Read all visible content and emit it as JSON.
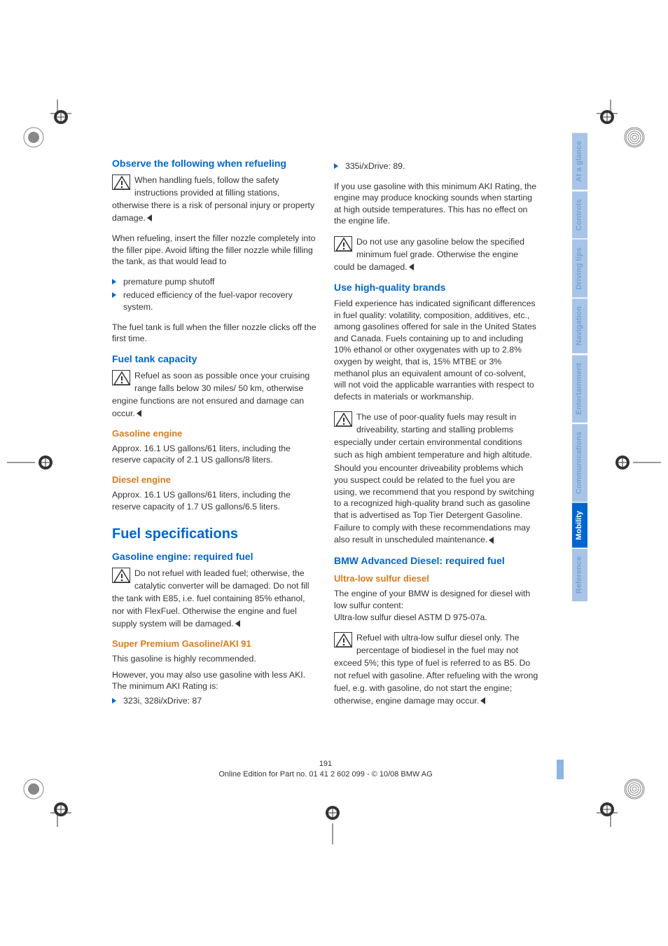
{
  "colors": {
    "heading_blue": "#0066cc",
    "heading_orange": "#d97b1e",
    "body_text": "#333333",
    "tab_inactive_bg": "#a8c5e8",
    "tab_inactive_text": "#7aa3d4",
    "tab_active_bg": "#0066cc",
    "tab_active_text": "#ffffff"
  },
  "left_col": {
    "h_observe": "Observe the following when refueling",
    "warn1": "When handling fuels, follow the safety instructions provided at filling stations, otherwise there is a risk of personal injury or property damage.",
    "p_refuel_insert": "When refueling, insert the filler nozzle completely into the filler pipe. Avoid lifting the filler nozzle while filling the tank, as that would lead to",
    "bullets": [
      "premature pump shutoff",
      "reduced efficiency of the fuel-vapor recovery system."
    ],
    "p_tank_full": "The fuel tank is full when the filler nozzle clicks off the first time.",
    "h_capacity": "Fuel tank capacity",
    "warn2": "Refuel as soon as possible once your cruising range falls below 30 miles/ 50 km, otherwise engine functions are not ensured and damage can occur.",
    "h_gas": "Gasoline engine",
    "p_gas": "Approx. 16.1 US gallons/61 liters, including the reserve capacity of 2.1 US gallons/8 liters.",
    "h_diesel": "Diesel engine",
    "p_diesel": "Approx. 16.1 US gallons/61 liters, including the reserve capacity of 1.7 US gallons/6.5 liters.",
    "h_spec": "Fuel specifications",
    "h_gas_req": "Gasoline engine: required fuel",
    "warn3": "Do not refuel with leaded fuel; otherwise, the catalytic converter will be damaged. Do not fill the tank with E85, i.e. fuel containing 85% ethanol, nor with FlexFuel. Otherwise the engine and fuel supply system will be damaged.",
    "h_super": "Super Premium Gasoline/AKI 91",
    "p_super1": "This gasoline is highly recommended.",
    "p_super2": "However, you may also use gasoline with less AKI. The minimum AKI Rating is:",
    "bullet_aki": "323i, 328i/xDrive: 87"
  },
  "right_col": {
    "bullet_335": "335i/xDrive: 89.",
    "p_knock": "If you use gasoline with this minimum AKI Rating, the engine may produce knocking sounds when starting at high outside temperatures. This has no effect on the engine life.",
    "warn4": "Do not use any gasoline below the specified minimum fuel grade. Otherwise the engine could be damaged.",
    "h_brands": "Use high-quality brands",
    "p_brands": "Field experience has indicated significant differences in fuel quality: volatility, composition, additives, etc., among gasolines offered for sale in the United States and Canada. Fuels containing up to and including 10% ethanol or other oxygenates with up to 2.8% oxygen by weight, that is, 15% MTBE or 3% methanol plus an equivalent amount of co-solvent, will not void the applicable warranties with respect to defects in materials or workmanship.",
    "warn5a": "The use of poor-quality fuels may result in driveability, starting and stalling problems especially under certain environmental conditions such as high ambient temperature and high altitude.",
    "warn5b": "Should you encounter driveability problems which you suspect could be related to the fuel you are using, we recommend that you respond by switching to a recognized high-quality brand such as gasoline that is advertised as Top Tier Detergent Gasoline.",
    "warn5c": "Failure to comply with these recommendations may also result in unscheduled maintenance.",
    "h_bmw_diesel": "BMW Advanced Diesel: required fuel",
    "h_ultra": "Ultra-low sulfur diesel",
    "p_ultra1": "The engine of your BMW is designed for diesel with low sulfur content:",
    "p_ultra2": "Ultra-low sulfur diesel ASTM D 975-07a.",
    "warn6": "Refuel with ultra-low sulfur diesel only. The percentage of biodiesel in the fuel may not exceed 5%; this type of fuel is referred to as B5. Do not refuel with gasoline. After refueling with the wrong fuel, e.g. with gasoline, do not start the engine; otherwise, engine damage may occur."
  },
  "tabs": [
    {
      "label": "At a glance",
      "active": false
    },
    {
      "label": "Controls",
      "active": false
    },
    {
      "label": "Driving tips",
      "active": false
    },
    {
      "label": "Navigation",
      "active": false
    },
    {
      "label": "Entertainment",
      "active": false
    },
    {
      "label": "Communications",
      "active": false
    },
    {
      "label": "Mobility",
      "active": true
    },
    {
      "label": "Reference",
      "active": false
    }
  ],
  "footer": {
    "page": "191",
    "edition": "Online Edition for Part no. 01 41 2 602 099 - © 10/08 BMW AG"
  }
}
